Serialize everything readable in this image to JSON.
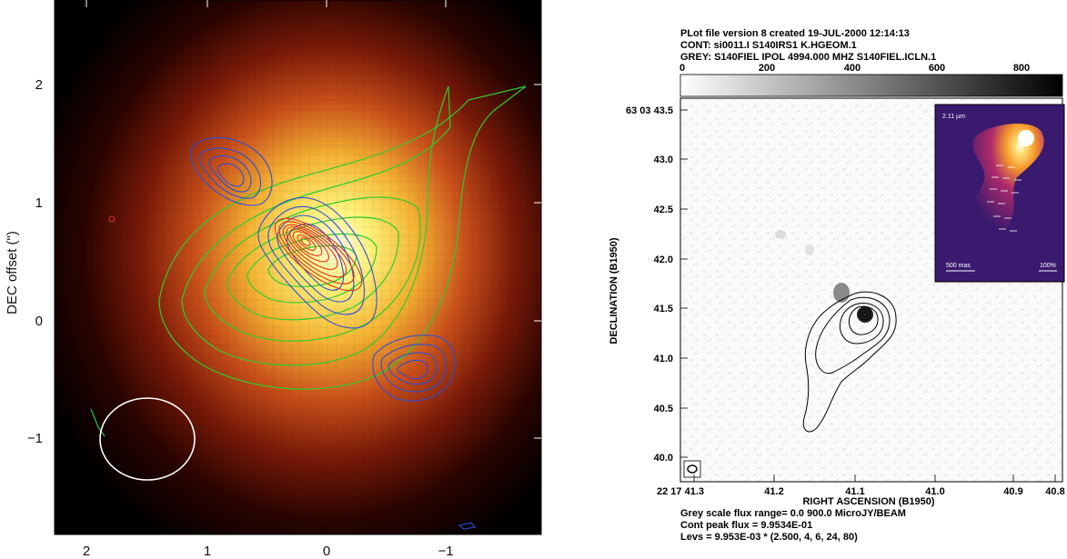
{
  "left_panel": {
    "xlabel": "RA offset (\")",
    "ylabel": "DEC offset (\")",
    "xticks": [
      "2",
      "1",
      "0",
      "−1"
    ],
    "yticks": [
      "2",
      "1",
      "0",
      "−1"
    ],
    "colors": {
      "green_contours": "#2ecc2e",
      "blue_contours": "#2a4fd8",
      "red_contours": "#e0301e",
      "beam": "#ffffff"
    }
  },
  "right_panel": {
    "header": {
      "line1": "PLot file version 8  created 19-JUL-2000 12:14:13",
      "line2": "CONT: si0011.I  S140IRS1 K.HGEOM.1",
      "line3": "GREY: S140FIEL  IPOL  4994.000 MHZ  S140FIEL.ICLN.1"
    },
    "colorbar_ticks": [
      "0",
      "200",
      "400",
      "600",
      "800"
    ],
    "xlabel": "RIGHT ASCENSION (B1950)",
    "ylabel": "DECLINATION (B1950)",
    "xticks": [
      "22 17 41.3",
      "41.2",
      "41.1",
      "41.0",
      "40.9",
      "40.8"
    ],
    "yticks": [
      "63 03 43.5",
      "43.0",
      "42.5",
      "42.0",
      "41.5",
      "41.0",
      "40.5",
      "40.0"
    ],
    "footer": {
      "line1": "Grey scale flux range= 0.0 900.0 MicroJY/BEAM",
      "line2": "Cont peak flux =  9.9534E-01",
      "line3": "Levs = 9.953E-03 * (2.500, 4, 6, 24, 80)"
    },
    "inset": {
      "wavelength_label": "2.11 µm",
      "scalebar_label": "500 mas",
      "polarization_label": "100%"
    }
  }
}
